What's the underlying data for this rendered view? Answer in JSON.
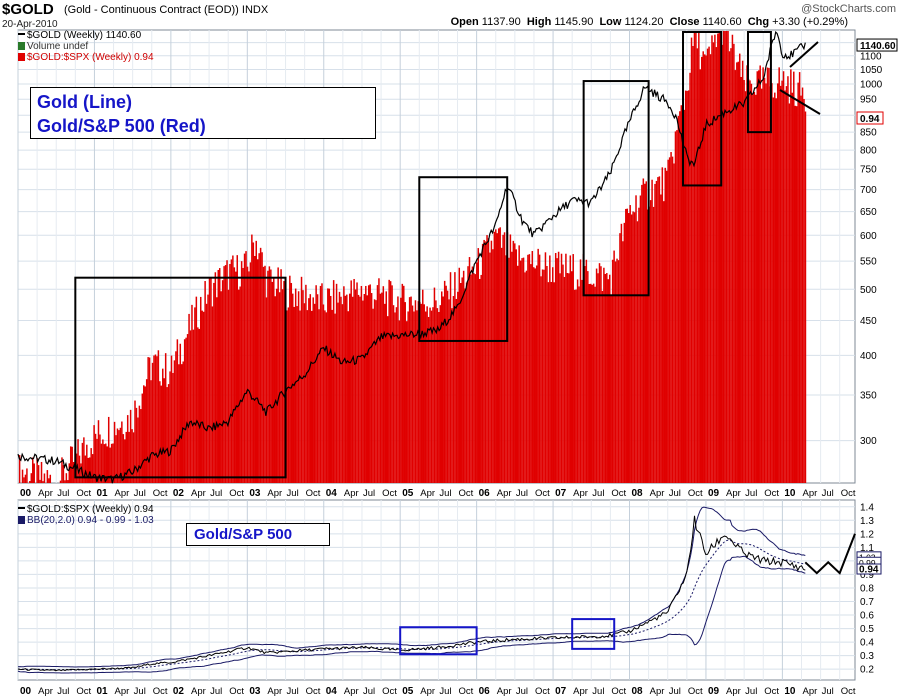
{
  "header": {
    "symbol": "$GOLD",
    "description": "(Gold - Continuous Contract (EOD)) INDX",
    "date": "20-Apr-2010",
    "brand": "@StockCharts.com",
    "open_label": "Open",
    "open_value": "1137.90",
    "high_label": "High",
    "high_value": "1145.90",
    "low_label": "Low",
    "low_value": "1124.20",
    "close_label": "Close",
    "close_value": "1140.60",
    "chg_label": "Chg",
    "chg_value": "+3.30 (+0.29%)"
  },
  "legend_top": {
    "gold_line": "$GOLD (Weekly) 1140.60",
    "volume": "Volume undef",
    "ratio": "$GOLD:$SPX (Weekly) 0.94"
  },
  "legend_bottom": {
    "ratio": "$GOLD:$SPX (Weekly) 0.94",
    "bb": "BB(20,2.0) 0.94 - 0.99 - 1.03"
  },
  "annotations": {
    "top_line1": "Gold (Line)",
    "top_line2": "Gold/S&P 500 (Red)",
    "bottom": "Gold/S&P 500"
  },
  "colors": {
    "gold_line": "#000000",
    "ratio_bars": "#e00000",
    "bb_band": "#1a1a66",
    "box_blue": "#1515c8",
    "grid": "#d7e0ea"
  },
  "price_badges": {
    "gold_last": "1140.60",
    "ratio_last": "0.94",
    "bottom_ratio_last": "0.94",
    "bottom_upper": "1.03",
    "bottom_mid": "0.99"
  },
  "chart_data": [
    {
      "type": "line",
      "name": "gold-price-panel",
      "series": [
        {
          "name": "$GOLD (Weekly)",
          "x": [
            2000.0,
            2000.5,
            2001.0,
            2001.25,
            2001.5,
            2001.75,
            2002.0,
            2002.25,
            2002.5,
            2002.75,
            2003.0,
            2003.25,
            2003.5,
            2003.75,
            2004.0,
            2004.25,
            2004.5,
            2004.75,
            2005.0,
            2005.25,
            2005.5,
            2005.75,
            2006.0,
            2006.25,
            2006.4,
            2006.6,
            2006.75,
            2007.0,
            2007.25,
            2007.5,
            2007.75,
            2008.0,
            2008.2,
            2008.5,
            2008.6,
            2008.75,
            2008.85,
            2009.0,
            2009.25,
            2009.5,
            2009.75,
            2009.92,
            2010.0,
            2010.1,
            2010.3
          ],
          "values": [
            285,
            280,
            265,
            263,
            270,
            285,
            290,
            320,
            312,
            320,
            355,
            330,
            355,
            375,
            410,
            390,
            395,
            425,
            428,
            430,
            435,
            470,
            550,
            620,
            710,
            630,
            600,
            640,
            675,
            670,
            740,
            880,
            990,
            940,
            900,
            780,
            760,
            870,
            910,
            935,
            1020,
            1200,
            1110,
            1100,
            1140.6
          ]
        },
        {
          "name": "$GOLD:$SPX (Weekly)",
          "x": [
            2000.0,
            2000.5,
            2001.0,
            2001.5,
            2001.75,
            2002.0,
            2002.25,
            2002.5,
            2002.75,
            2003.0,
            2003.1,
            2003.25,
            2003.5,
            2004.0,
            2004.5,
            2005.0,
            2005.5,
            2006.0,
            2006.25,
            2006.5,
            2007.0,
            2007.5,
            2007.75,
            2008.0,
            2008.25,
            2008.5,
            2008.75,
            2008.85,
            2009.0,
            2009.2,
            2009.5,
            2009.75,
            2010.0,
            2010.3
          ],
          "values": [
            0.2,
            0.19,
            0.23,
            0.25,
            0.31,
            0.3,
            0.36,
            0.42,
            0.45,
            0.46,
            0.52,
            0.44,
            0.42,
            0.4,
            0.42,
            0.4,
            0.4,
            0.46,
            0.52,
            0.48,
            0.46,
            0.45,
            0.44,
            0.58,
            0.63,
            0.66,
            0.96,
            1.2,
            1.05,
            1.25,
            0.98,
            0.98,
            0.99,
            0.94
          ]
        }
      ],
      "y_axis_ticks": [
        300,
        350,
        400,
        450,
        500,
        550,
        600,
        650,
        700,
        750,
        800,
        850,
        900,
        950,
        1000,
        1050,
        1100,
        1150
      ],
      "y_scale": "log",
      "ylim": [
        260,
        1200
      ],
      "xlim": [
        2000.0,
        2010.95
      ],
      "x_tick_labels": [
        "00",
        "Apr",
        "Jul",
        "Oct",
        "01",
        "Apr",
        "Jul",
        "Oct",
        "02",
        "Apr",
        "Jul",
        "Oct",
        "03",
        "Apr",
        "Jul",
        "Oct",
        "04",
        "Apr",
        "Jul",
        "Oct",
        "05",
        "Apr",
        "Jul",
        "Oct",
        "06",
        "Apr",
        "Jul",
        "Oct",
        "07",
        "Apr",
        "Jul",
        "Oct",
        "08",
        "Apr",
        "Jul",
        "Oct",
        "09",
        "Apr",
        "Jul",
        "Oct",
        "10",
        "Apr",
        "Jul",
        "Oct"
      ],
      "grid": true,
      "boxes": [
        {
          "x0": 2000.75,
          "x1": 2003.5,
          "y0": 265,
          "y1": 520
        },
        {
          "x0": 2005.25,
          "x1": 2006.4,
          "y0": 420,
          "y1": 730
        },
        {
          "x0": 2007.4,
          "x1": 2008.25,
          "y0": 490,
          "y1": 1010
        },
        {
          "x0": 2008.7,
          "x1": 2009.2,
          "y0": 710,
          "y1": 1200
        },
        {
          "x0": 2009.55,
          "x1": 2009.85,
          "y0": 850,
          "y1": 1200
        }
      ]
    },
    {
      "type": "line",
      "name": "gold-spx-ratio-panel",
      "series": [
        {
          "name": "$GOLD:$SPX (Weekly)",
          "x": [
            2000.0,
            2000.5,
            2001.0,
            2001.5,
            2001.75,
            2002.0,
            2002.5,
            2003.0,
            2003.25,
            2003.5,
            2004.0,
            2004.5,
            2005.0,
            2005.5,
            2006.0,
            2006.5,
            2007.0,
            2007.5,
            2007.75,
            2008.0,
            2008.25,
            2008.5,
            2008.75,
            2008.85,
            2009.0,
            2009.25,
            2009.5,
            2009.75,
            2010.0,
            2010.3
          ],
          "values": [
            0.2,
            0.19,
            0.2,
            0.21,
            0.24,
            0.25,
            0.3,
            0.36,
            0.32,
            0.33,
            0.35,
            0.36,
            0.34,
            0.36,
            0.4,
            0.42,
            0.43,
            0.44,
            0.45,
            0.48,
            0.55,
            0.62,
            0.9,
            1.3,
            1.05,
            1.2,
            1.05,
            1.0,
            0.99,
            0.94
          ]
        }
      ],
      "y_axis_ticks": [
        0.2,
        0.3,
        0.4,
        0.5,
        0.6,
        0.7,
        0.8,
        0.9,
        1.0,
        1.1,
        1.2,
        1.3,
        1.4
      ],
      "ylim": [
        0.12,
        1.45
      ],
      "xlim": [
        2000.0,
        2010.95
      ],
      "x_tick_labels": [
        "00",
        "Apr",
        "Jul",
        "Oct",
        "01",
        "Apr",
        "Jul",
        "Oct",
        "02",
        "Apr",
        "Jul",
        "Oct",
        "03",
        "Apr",
        "Jul",
        "Oct",
        "04",
        "Apr",
        "Jul",
        "Oct",
        "05",
        "Apr",
        "Jul",
        "Oct",
        "06",
        "Apr",
        "Jul",
        "Oct",
        "07",
        "Apr",
        "Jul",
        "Oct",
        "08",
        "Apr",
        "Jul",
        "Oct",
        "09",
        "Apr",
        "Jul",
        "Oct",
        "10",
        "Apr",
        "Jul",
        "Oct"
      ],
      "grid": true,
      "projection": {
        "x": [
          2010.3,
          2010.45,
          2010.6,
          2010.75,
          2010.95
        ],
        "values": [
          0.99,
          0.91,
          0.99,
          0.91,
          1.2
        ]
      },
      "boxes": [
        {
          "x0": 2005.0,
          "x1": 2006.0,
          "y0": 0.31,
          "y1": 0.51
        },
        {
          "x0": 2007.25,
          "x1": 2007.8,
          "y0": 0.35,
          "y1": 0.57
        }
      ]
    }
  ]
}
